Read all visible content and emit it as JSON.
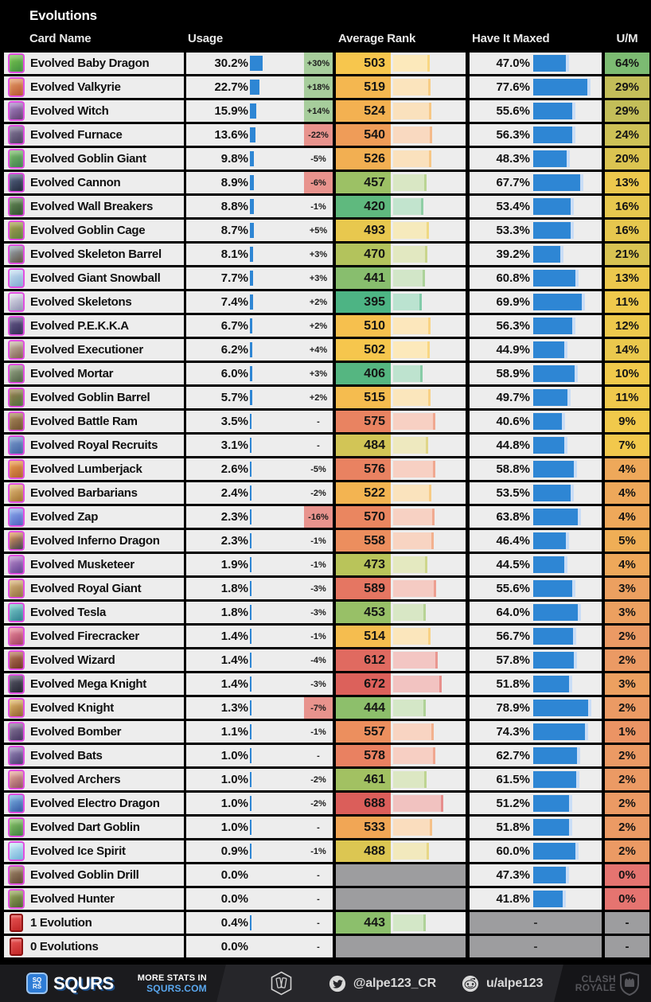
{
  "header": {
    "title": "Evolutions",
    "columns": {
      "card": "Card Name",
      "usage": "Usage",
      "rank": "Average Rank",
      "maxed": "Have It Maxed",
      "um": "U/M"
    }
  },
  "colors": {
    "usage_bar": "#2e86d4",
    "maxed_bar": "#2e86d4",
    "maxed_bar_light": "#c9ddf6",
    "badge_up": "#a7cd9c",
    "badge_down": "#e8938d",
    "cell_bg": "#ededed",
    "gray_cell": "#9d9d9f",
    "evo_border": "#e14fe1"
  },
  "chart_data": {
    "type": "table",
    "title": "Evolutions",
    "columns": [
      "Card Name",
      "Usage",
      "Usage Change",
      "Average Rank",
      "Have It Maxed",
      "U/M"
    ],
    "rows": [
      {
        "name": "Evolved Baby Dragon",
        "usage_pct": 30.2,
        "usage_change": "+30%",
        "avg_rank": 503,
        "have_it_maxed_pct": 47.0,
        "um_pct": 64,
        "kind": "evo",
        "icon": [
          "#7ec850",
          "#3f8f3f"
        ]
      },
      {
        "name": "Evolved Valkyrie",
        "usage_pct": 22.7,
        "usage_change": "+18%",
        "avg_rank": 519,
        "have_it_maxed_pct": 77.6,
        "um_pct": 29,
        "kind": "evo",
        "icon": [
          "#e8a06a",
          "#b5532f"
        ]
      },
      {
        "name": "Evolved Witch",
        "usage_pct": 15.9,
        "usage_change": "+14%",
        "avg_rank": 524,
        "have_it_maxed_pct": 55.6,
        "um_pct": 29,
        "kind": "evo",
        "icon": [
          "#b08ad0",
          "#5f3f6f"
        ]
      },
      {
        "name": "Evolved Furnace",
        "usage_pct": 13.6,
        "usage_change": "-22%",
        "avg_rank": 540,
        "have_it_maxed_pct": 56.3,
        "um_pct": 24,
        "kind": "evo",
        "icon": [
          "#8a7f9f",
          "#4a3f5f"
        ]
      },
      {
        "name": "Evolved Goblin Giant",
        "usage_pct": 9.8,
        "usage_change": "-5%",
        "avg_rank": 526,
        "have_it_maxed_pct": 48.3,
        "um_pct": 20,
        "kind": "evo",
        "icon": [
          "#7fc06a",
          "#3f7f4f"
        ]
      },
      {
        "name": "Evolved Cannon",
        "usage_pct": 8.9,
        "usage_change": "-6%",
        "avg_rank": 457,
        "have_it_maxed_pct": 67.7,
        "um_pct": 13,
        "kind": "evo",
        "icon": [
          "#5a6a8a",
          "#22283c"
        ]
      },
      {
        "name": "Evolved Wall Breakers",
        "usage_pct": 8.8,
        "usage_change": "-1%",
        "avg_rank": 420,
        "have_it_maxed_pct": 53.4,
        "um_pct": 16,
        "kind": "evo",
        "icon": [
          "#6a8f5a",
          "#32502f"
        ]
      },
      {
        "name": "Evolved Goblin Cage",
        "usage_pct": 8.7,
        "usage_change": "+5%",
        "avg_rank": 493,
        "have_it_maxed_pct": 53.3,
        "um_pct": 16,
        "kind": "evo",
        "icon": [
          "#b0a050",
          "#5f7f3f"
        ]
      },
      {
        "name": "Evolved Skeleton Barrel",
        "usage_pct": 8.1,
        "usage_change": "+3%",
        "avg_rank": 470,
        "have_it_maxed_pct": 39.2,
        "um_pct": 21,
        "kind": "evo",
        "icon": [
          "#9fb0bf",
          "#5f4f3f"
        ]
      },
      {
        "name": "Evolved Giant Snowball",
        "usage_pct": 7.7,
        "usage_change": "+3%",
        "avg_rank": 441,
        "have_it_maxed_pct": 60.8,
        "um_pct": 13,
        "kind": "evo",
        "icon": [
          "#cfe4f4",
          "#7fa8d0"
        ]
      },
      {
        "name": "Evolved Skeletons",
        "usage_pct": 7.4,
        "usage_change": "+2%",
        "avg_rank": 395,
        "have_it_maxed_pct": 69.9,
        "um_pct": 11,
        "kind": "evo",
        "icon": [
          "#e8e8f0",
          "#8f8fb0"
        ]
      },
      {
        "name": "Evolved P.E.K.K.A",
        "usage_pct": 6.7,
        "usage_change": "+2%",
        "avg_rank": 510,
        "have_it_maxed_pct": 56.3,
        "um_pct": 12,
        "kind": "evo",
        "icon": [
          "#6a5f8f",
          "#332a55"
        ]
      },
      {
        "name": "Evolved Executioner",
        "usage_pct": 6.2,
        "usage_change": "+4%",
        "avg_rank": 502,
        "have_it_maxed_pct": 44.9,
        "um_pct": 14,
        "kind": "evo",
        "icon": [
          "#d0c0b0",
          "#7f5f4f"
        ]
      },
      {
        "name": "Evolved Mortar",
        "usage_pct": 6.0,
        "usage_change": "+3%",
        "avg_rank": 406,
        "have_it_maxed_pct": 58.9,
        "um_pct": 10,
        "kind": "evo",
        "icon": [
          "#9fae8f",
          "#4f5f44"
        ]
      },
      {
        "name": "Evolved Goblin Barrel",
        "usage_pct": 5.7,
        "usage_change": "+2%",
        "avg_rank": 515,
        "have_it_maxed_pct": 49.7,
        "um_pct": 11,
        "kind": "evo",
        "icon": [
          "#a08050",
          "#4f6f3f"
        ]
      },
      {
        "name": "Evolved Battle Ram",
        "usage_pct": 3.5,
        "usage_change": "-",
        "avg_rank": 575,
        "have_it_maxed_pct": 40.6,
        "um_pct": 9,
        "kind": "evo",
        "icon": [
          "#b08f5f",
          "#6f4f2f"
        ]
      },
      {
        "name": "Evolved Royal Recruits",
        "usage_pct": 3.1,
        "usage_change": "-",
        "avg_rank": 484,
        "have_it_maxed_pct": 44.8,
        "um_pct": 7,
        "kind": "evo",
        "icon": [
          "#7fa0d0",
          "#3f5f9f"
        ]
      },
      {
        "name": "Evolved Lumberjack",
        "usage_pct": 2.6,
        "usage_change": "-5%",
        "avg_rank": 576,
        "have_it_maxed_pct": 58.8,
        "um_pct": 4,
        "kind": "evo",
        "icon": [
          "#f0a050",
          "#b05f2f"
        ]
      },
      {
        "name": "Evolved Barbarians",
        "usage_pct": 2.4,
        "usage_change": "-2%",
        "avg_rank": 522,
        "have_it_maxed_pct": 53.5,
        "um_pct": 4,
        "kind": "evo",
        "icon": [
          "#e8c080",
          "#a0702f"
        ]
      },
      {
        "name": "Evolved Zap",
        "usage_pct": 2.3,
        "usage_change": "-16%",
        "avg_rank": 570,
        "have_it_maxed_pct": 63.8,
        "um_pct": 4,
        "kind": "evo",
        "icon": [
          "#8fb0f0",
          "#4f5fbf"
        ]
      },
      {
        "name": "Evolved Inferno Dragon",
        "usage_pct": 2.3,
        "usage_change": "-1%",
        "avg_rank": 558,
        "have_it_maxed_pct": 46.4,
        "um_pct": 5,
        "kind": "evo",
        "icon": [
          "#f09f5f",
          "#3f3f4f"
        ]
      },
      {
        "name": "Evolved Musketeer",
        "usage_pct": 1.9,
        "usage_change": "-1%",
        "avg_rank": 473,
        "have_it_maxed_pct": 44.5,
        "um_pct": 4,
        "kind": "evo",
        "icon": [
          "#bf8fd0",
          "#5f3f8f"
        ]
      },
      {
        "name": "Evolved Royal Giant",
        "usage_pct": 1.8,
        "usage_change": "-3%",
        "avg_rank": 589,
        "have_it_maxed_pct": 55.6,
        "um_pct": 3,
        "kind": "evo",
        "icon": [
          "#e0b97f",
          "#8f6f3f"
        ]
      },
      {
        "name": "Evolved Tesla",
        "usage_pct": 1.8,
        "usage_change": "-3%",
        "avg_rank": 453,
        "have_it_maxed_pct": 64.0,
        "um_pct": 3,
        "kind": "evo",
        "icon": [
          "#7fd0cf",
          "#2f7f8f"
        ]
      },
      {
        "name": "Evolved Firecracker",
        "usage_pct": 1.4,
        "usage_change": "-1%",
        "avg_rank": 514,
        "have_it_maxed_pct": 56.7,
        "um_pct": 2,
        "kind": "evo",
        "icon": [
          "#f08f9f",
          "#9f3f5f"
        ]
      },
      {
        "name": "Evolved Wizard",
        "usage_pct": 1.4,
        "usage_change": "-4%",
        "avg_rank": 612,
        "have_it_maxed_pct": 57.8,
        "um_pct": 2,
        "kind": "evo",
        "icon": [
          "#bf7f5f",
          "#6f3322"
        ]
      },
      {
        "name": "Evolved Mega Knight",
        "usage_pct": 1.4,
        "usage_change": "-3%",
        "avg_rank": 672,
        "have_it_maxed_pct": 51.8,
        "um_pct": 3,
        "kind": "evo",
        "icon": [
          "#5f5f6f",
          "#22222f"
        ]
      },
      {
        "name": "Evolved Knight",
        "usage_pct": 1.3,
        "usage_change": "-7%",
        "avg_rank": 444,
        "have_it_maxed_pct": 78.9,
        "um_pct": 2,
        "kind": "evo",
        "icon": [
          "#e8bf6f",
          "#8f5f2f"
        ]
      },
      {
        "name": "Evolved Bomber",
        "usage_pct": 1.1,
        "usage_change": "-1%",
        "avg_rank": 557,
        "have_it_maxed_pct": 74.3,
        "um_pct": 1,
        "kind": "evo",
        "icon": [
          "#8f7fa0",
          "#44335f"
        ]
      },
      {
        "name": "Evolved Bats",
        "usage_pct": 1.0,
        "usage_change": "-",
        "avg_rank": 578,
        "have_it_maxed_pct": 62.7,
        "um_pct": 2,
        "kind": "evo",
        "icon": [
          "#9f8fc0",
          "#4a3a70"
        ]
      },
      {
        "name": "Evolved Archers",
        "usage_pct": 1.0,
        "usage_change": "-2%",
        "avg_rank": 461,
        "have_it_maxed_pct": 61.5,
        "um_pct": 2,
        "kind": "evo",
        "icon": [
          "#f0b0a0",
          "#8f4f5f"
        ]
      },
      {
        "name": "Evolved Electro Dragon",
        "usage_pct": 1.0,
        "usage_change": "-2%",
        "avg_rank": 688,
        "have_it_maxed_pct": 51.2,
        "um_pct": 2,
        "kind": "evo",
        "icon": [
          "#7fb8e8",
          "#3355a0"
        ]
      },
      {
        "name": "Evolved Dart Goblin",
        "usage_pct": 1.0,
        "usage_change": "-",
        "avg_rank": 533,
        "have_it_maxed_pct": 51.8,
        "um_pct": 2,
        "kind": "evo",
        "icon": [
          "#8fc86a",
          "#3f7f3f"
        ]
      },
      {
        "name": "Evolved Ice Spirit",
        "usage_pct": 0.9,
        "usage_change": "-1%",
        "avg_rank": 488,
        "have_it_maxed_pct": 60.0,
        "um_pct": 2,
        "kind": "evo",
        "icon": [
          "#cfeef8",
          "#6fb0d8"
        ]
      },
      {
        "name": "Evolved Goblin Drill",
        "usage_pct": 0.0,
        "usage_change": "-",
        "avg_rank": null,
        "have_it_maxed_pct": 47.3,
        "um_pct": 0,
        "kind": "evo",
        "icon": [
          "#a88f70",
          "#5f4433"
        ]
      },
      {
        "name": "Evolved Hunter",
        "usage_pct": 0.0,
        "usage_change": "-",
        "avg_rank": null,
        "have_it_maxed_pct": 41.8,
        "um_pct": 0,
        "kind": "evo",
        "icon": [
          "#a0b060",
          "#4f5f2f"
        ]
      },
      {
        "name": "1 Evolution",
        "usage_pct": 0.4,
        "usage_change": "-",
        "avg_rank": 443,
        "have_it_maxed_pct": null,
        "um_pct": null,
        "kind": "deck",
        "icon": [
          "#e85555",
          "#c22727"
        ]
      },
      {
        "name": "0 Evolutions",
        "usage_pct": 0.0,
        "usage_change": "-",
        "avg_rank": null,
        "have_it_maxed_pct": null,
        "um_pct": null,
        "kind": "deck",
        "icon": [
          "#e85555",
          "#c22727"
        ]
      }
    ]
  },
  "footer": {
    "brand": "SQURS",
    "logo_top": "SQ",
    "logo_bottom": "RS",
    "more_line1": "MORE STATS IN",
    "more_line2": "SQURS.COM",
    "twitter_handle": "@alpe123_CR",
    "reddit_handle": "u/alpe123",
    "clash_line1": "CLASH",
    "clash_line2": "ROYALE"
  }
}
